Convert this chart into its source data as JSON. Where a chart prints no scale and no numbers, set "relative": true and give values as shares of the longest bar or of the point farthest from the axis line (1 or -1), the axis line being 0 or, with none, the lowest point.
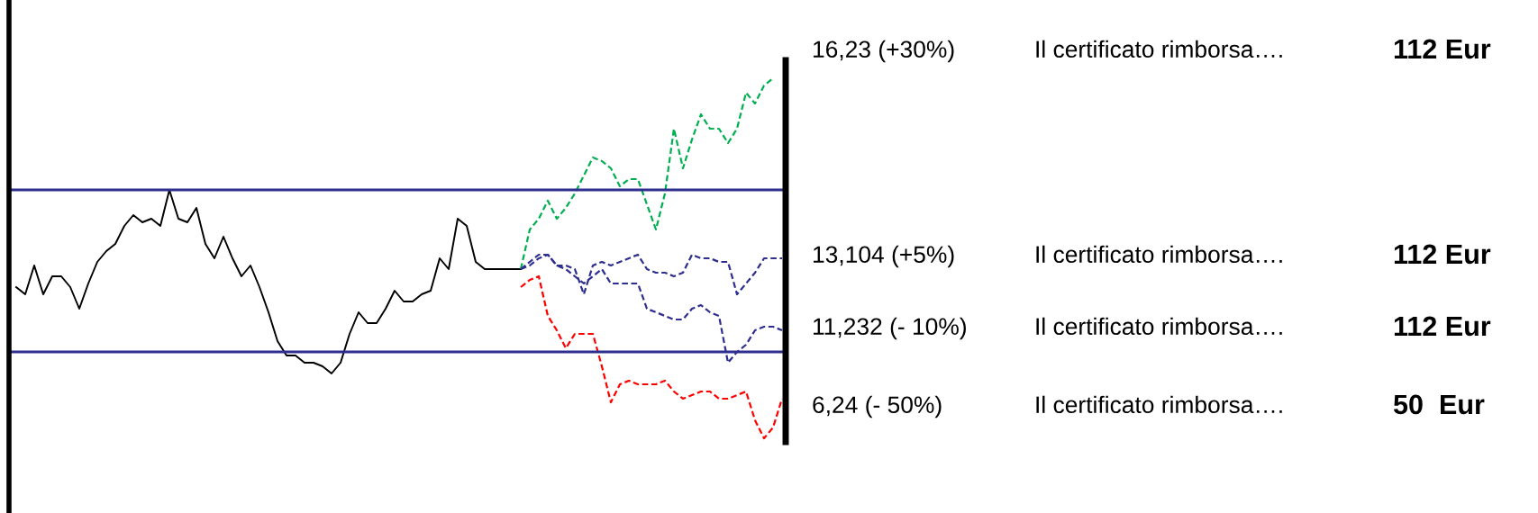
{
  "chart_data": {
    "type": "line",
    "relative": true,
    "marker": "none",
    "categories": [
      null,
      null,
      null,
      null,
      null,
      null,
      null,
      null,
      null,
      null,
      null,
      null,
      null,
      null,
      null,
      null,
      null,
      null,
      null,
      null,
      null,
      null,
      null,
      null,
      null,
      null,
      null,
      null,
      null,
      null,
      null,
      null,
      null,
      null,
      null,
      null,
      null,
      null,
      null,
      null,
      null,
      null,
      null,
      null,
      null,
      null,
      null,
      null,
      null,
      null,
      null,
      null,
      null,
      null,
      null,
      null,
      null,
      null,
      null,
      null,
      null,
      null,
      null,
      null,
      null,
      null,
      null,
      null,
      null,
      null,
      null,
      null,
      null,
      null,
      null,
      null,
      null,
      null,
      null,
      null,
      null,
      null,
      null,
      null,
      null,
      null
    ],
    "series": [
      {
        "color": "#000000",
        "line_style": "solid",
        "values": [
          0.42,
          0.4,
          0.48,
          0.4,
          0.45,
          0.45,
          0.42,
          0.36,
          0.43,
          0.49,
          0.52,
          0.54,
          0.59,
          0.62,
          0.6,
          0.61,
          0.59,
          0.69,
          0.61,
          0.6,
          0.64,
          0.54,
          0.5,
          0.56,
          0.5,
          0.45,
          0.48,
          0.42,
          0.35,
          0.27,
          0.23,
          0.23,
          0.21,
          0.21,
          0.2,
          0.18,
          0.21,
          0.29,
          0.35,
          0.32,
          0.32,
          0.36,
          0.41,
          0.38,
          0.38,
          0.4,
          0.41,
          0.5,
          0.47,
          0.61,
          0.59,
          0.49,
          0.47,
          0.47,
          0.47,
          0.47,
          0.47,
          null,
          null,
          null,
          null,
          null,
          null,
          null,
          null,
          null,
          null,
          null,
          null,
          null,
          null,
          null,
          null,
          null,
          null,
          null,
          null,
          null,
          null,
          null,
          null,
          null,
          null,
          null,
          null,
          null
        ]
      },
      {
        "color": "#00b050",
        "line_style": "dashed",
        "values": [
          null,
          null,
          null,
          null,
          null,
          null,
          null,
          null,
          null,
          null,
          null,
          null,
          null,
          null,
          null,
          null,
          null,
          null,
          null,
          null,
          null,
          null,
          null,
          null,
          null,
          null,
          null,
          null,
          null,
          null,
          null,
          null,
          null,
          null,
          null,
          null,
          null,
          null,
          null,
          null,
          null,
          null,
          null,
          null,
          null,
          null,
          null,
          null,
          null,
          null,
          null,
          null,
          null,
          null,
          null,
          null,
          0.47,
          0.58,
          0.61,
          0.66,
          0.61,
          0.64,
          0.68,
          0.73,
          0.78,
          0.77,
          0.75,
          0.7,
          0.72,
          0.72,
          0.65,
          0.58,
          0.68,
          0.86,
          0.75,
          0.83,
          0.9,
          0.86,
          0.86,
          0.82,
          0.86,
          0.96,
          0.93,
          0.98,
          1.0,
          null
        ]
      },
      {
        "color": "#2e2e8f",
        "line_style": "dashed",
        "values": [
          null,
          null,
          null,
          null,
          null,
          null,
          null,
          null,
          null,
          null,
          null,
          null,
          null,
          null,
          null,
          null,
          null,
          null,
          null,
          null,
          null,
          null,
          null,
          null,
          null,
          null,
          null,
          null,
          null,
          null,
          null,
          null,
          null,
          null,
          null,
          null,
          null,
          null,
          null,
          null,
          null,
          null,
          null,
          null,
          null,
          null,
          null,
          null,
          null,
          null,
          null,
          null,
          null,
          null,
          null,
          null,
          0.47,
          0.49,
          0.51,
          0.51,
          0.48,
          0.48,
          0.47,
          0.4,
          0.48,
          0.49,
          0.48,
          0.49,
          0.5,
          0.51,
          0.47,
          0.46,
          0.46,
          0.45,
          0.46,
          0.51,
          0.5,
          0.5,
          0.49,
          0.49,
          0.4,
          0.43,
          0.46,
          0.5,
          0.5,
          0.5
        ]
      },
      {
        "color": "#2e2e8f",
        "line_style": "dashed",
        "values": [
          null,
          null,
          null,
          null,
          null,
          null,
          null,
          null,
          null,
          null,
          null,
          null,
          null,
          null,
          null,
          null,
          null,
          null,
          null,
          null,
          null,
          null,
          null,
          null,
          null,
          null,
          null,
          null,
          null,
          null,
          null,
          null,
          null,
          null,
          null,
          null,
          null,
          null,
          null,
          null,
          null,
          null,
          null,
          null,
          null,
          null,
          null,
          null,
          null,
          null,
          null,
          null,
          null,
          null,
          null,
          null,
          0.47,
          0.48,
          0.5,
          0.51,
          0.48,
          0.47,
          0.45,
          0.43,
          0.45,
          0.47,
          0.43,
          0.43,
          0.43,
          0.43,
          0.36,
          0.35,
          0.34,
          0.33,
          0.33,
          0.36,
          0.37,
          0.35,
          0.34,
          0.21,
          0.24,
          0.26,
          0.3,
          0.31,
          0.31,
          0.3
        ]
      },
      {
        "color": "#ff0000",
        "line_style": "dashed",
        "values": [
          null,
          null,
          null,
          null,
          null,
          null,
          null,
          null,
          null,
          null,
          null,
          null,
          null,
          null,
          null,
          null,
          null,
          null,
          null,
          null,
          null,
          null,
          null,
          null,
          null,
          null,
          null,
          null,
          null,
          null,
          null,
          null,
          null,
          null,
          null,
          null,
          null,
          null,
          null,
          null,
          null,
          null,
          null,
          null,
          null,
          null,
          null,
          null,
          null,
          null,
          null,
          null,
          null,
          null,
          null,
          null,
          0.42,
          0.44,
          0.45,
          0.34,
          0.3,
          0.25,
          0.29,
          0.29,
          0.29,
          0.2,
          0.1,
          0.15,
          0.16,
          0.15,
          0.15,
          0.15,
          0.16,
          0.13,
          0.11,
          0.12,
          0.13,
          0.13,
          0.11,
          0.11,
          0.12,
          0.13,
          0.05,
          0.0,
          0.03,
          0.11
        ]
      }
    ],
    "ref_lines": [
      {
        "axis": "y",
        "value": 0.69,
        "color": "#2e2e8f",
        "line_style": "solid"
      },
      {
        "axis": "y",
        "value": 0.24,
        "color": "#2e2e8f",
        "line_style": "solid"
      }
    ],
    "annotations": [
      "16,23 (+30%)",
      "Il certificato rimborsa….",
      "112 Eur",
      "13,104 (+5%)",
      "Il certificato rimborsa….",
      "112 Eur",
      "11,232 (- 10%)",
      "Il certificato rimborsa….",
      "112 Eur",
      "6,24 (- 50%)",
      "Il certificato rimborsa….",
      "50  Eur"
    ]
  }
}
